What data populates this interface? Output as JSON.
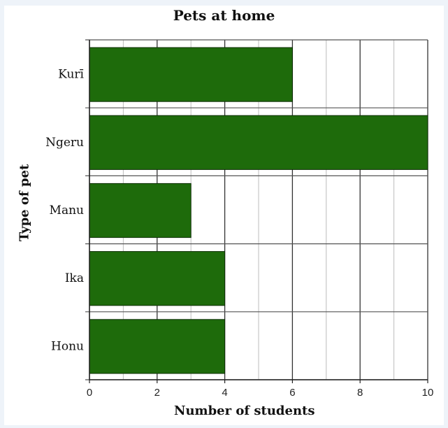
{
  "chart_data": {
    "type": "bar",
    "orientation": "horizontal",
    "title": "Pets at home",
    "xlabel": "Number of students",
    "ylabel": "Type of pet",
    "categories": [
      "Kurī",
      "Ngeru",
      "Manu",
      "Ika",
      "Honu"
    ],
    "values": [
      6,
      10,
      3,
      4,
      4
    ],
    "xlim": [
      0,
      10
    ],
    "xticks": [
      0,
      2,
      4,
      6,
      8,
      10
    ],
    "grid": true,
    "bar_color": "#1e6b0b"
  }
}
